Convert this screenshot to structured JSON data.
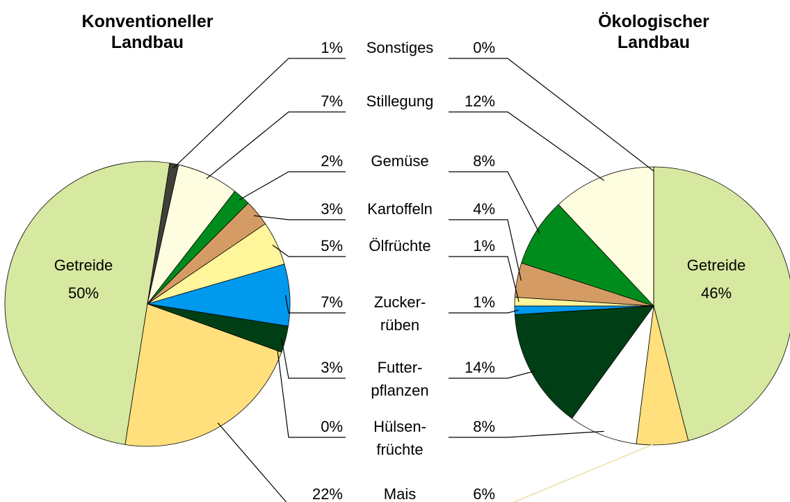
{
  "chart_data": {
    "type": "pie",
    "categories": [
      "Getreide",
      "Mais",
      "Hülsen-\nfrüchte",
      "Futter-\npflanzen",
      "Zucker-\nrüben",
      "Ölfrüchte",
      "Kartoffeln",
      "Gemüse",
      "Stillegung",
      "Sonstiges"
    ],
    "colors": [
      "#d7e8a0",
      "#ffe07c",
      "#ffffff",
      "#003f16",
      "#0099ee",
      "#fff59a",
      "#d49c64",
      "#008c1c",
      "#fffde0",
      "#404038"
    ],
    "series": [
      {
        "name": "Konventioneller\nLandbau",
        "values": [
          50,
          22,
          0,
          3,
          7,
          5,
          3,
          2,
          7,
          1
        ],
        "value_labels": [
          "50%",
          "22%",
          "0%",
          "3%",
          "7%",
          "5%",
          "3%",
          "2%",
          "7%",
          "1%"
        ]
      },
      {
        "name": "Ökologischer\nLandbau",
        "values": [
          46,
          6,
          8,
          14,
          1,
          1,
          4,
          8,
          12,
          0
        ],
        "value_labels": [
          "46%",
          "6%",
          "8%",
          "14%",
          "1%",
          "1%",
          "4%",
          "8%",
          "12%",
          "0%"
        ]
      }
    ]
  }
}
